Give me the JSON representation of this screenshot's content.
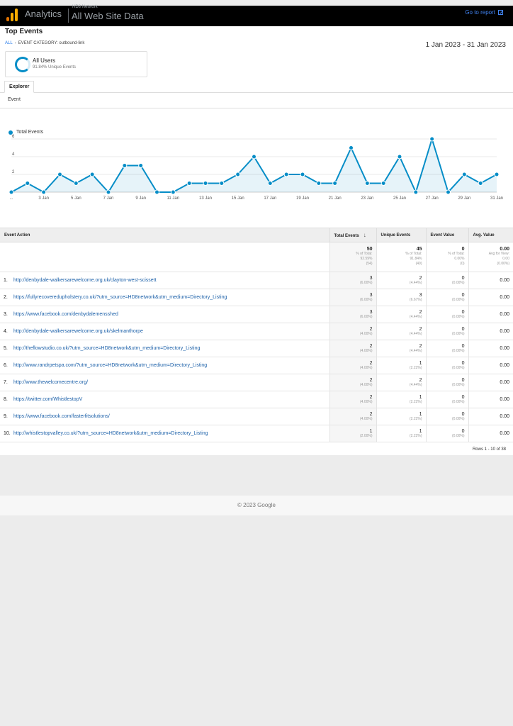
{
  "header": {
    "app_name": "Analytics",
    "account": "HD8 Network",
    "property": "All Web Site Data",
    "goto_report": "Go to report"
  },
  "report": {
    "title": "Top Events",
    "breadcrumb_all": "ALL",
    "breadcrumb_current": "EVENT CATEGORY: outbound-link",
    "date_range": "1 Jan 2023 - 31 Jan 2023"
  },
  "segment": {
    "name": "All Users",
    "sub": "91.84% Unique Events"
  },
  "tabs": {
    "explorer": "Explorer",
    "event": "Event"
  },
  "chart_data": {
    "type": "line",
    "series": [
      {
        "name": "Total Events",
        "values": [
          0,
          1,
          0,
          2,
          1,
          2,
          0,
          3,
          3,
          0,
          0,
          1,
          1,
          1,
          2,
          4,
          1,
          2,
          2,
          1,
          1,
          5,
          1,
          1,
          4,
          0,
          6,
          0,
          2,
          1,
          2
        ]
      }
    ],
    "x": [
      "1 Jan",
      "2 Jan",
      "3 Jan",
      "4 Jan",
      "5 Jan",
      "6 Jan",
      "7 Jan",
      "8 Jan",
      "9 Jan",
      "10 Jan",
      "11 Jan",
      "12 Jan",
      "13 Jan",
      "14 Jan",
      "15 Jan",
      "16 Jan",
      "17 Jan",
      "18 Jan",
      "19 Jan",
      "20 Jan",
      "21 Jan",
      "22 Jan",
      "23 Jan",
      "24 Jan",
      "25 Jan",
      "26 Jan",
      "27 Jan",
      "28 Jan",
      "29 Jan",
      "30 Jan",
      "31 Jan"
    ],
    "x_tick_labels": [
      "...",
      "3 Jan",
      "5 Jan",
      "7 Jan",
      "9 Jan",
      "11 Jan",
      "13 Jan",
      "15 Jan",
      "17 Jan",
      "19 Jan",
      "21 Jan",
      "23 Jan",
      "25 Jan",
      "27 Jan",
      "29 Jan",
      "31 Jan"
    ],
    "y_ticks": [
      "2",
      "4",
      "6"
    ],
    "ylim": [
      0,
      6
    ],
    "color": "#058dc7"
  },
  "table": {
    "headers": [
      "Event Action",
      "Total Events",
      "Unique Events",
      "Event Value",
      "Avg. Value"
    ],
    "totals": [
      {
        "main": "50",
        "l1": "% of Total:",
        "l2": "92.59%",
        "l3": "(54)"
      },
      {
        "main": "45",
        "l1": "% of Total:",
        "l2": "91.84%",
        "l3": "(49)"
      },
      {
        "main": "0",
        "l1": "% of Total:",
        "l2": "0.00%",
        "l3": "(0)"
      },
      {
        "main": "0.00",
        "l1": "Avg for View:",
        "l2": "0.00",
        "l3": "(0.00%)"
      }
    ],
    "rows": [
      {
        "idx": "1.",
        "action": "http://denbydale-walkersarewelcome.org.uk/clayton-west-scissett",
        "te": "3",
        "tep": "(6.00%)",
        "ue": "2",
        "uep": "(4.44%)",
        "ev": "0",
        "evp": "(0.00%)",
        "av": "0.00"
      },
      {
        "idx": "2.",
        "action": "https://fullyrecoveredupholstery.co.uk/?utm_source=HD8network&utm_medium=Directory_Listing",
        "te": "3",
        "tep": "(6.00%)",
        "ue": "3",
        "uep": "(6.67%)",
        "ev": "0",
        "evp": "(0.00%)",
        "av": "0.00"
      },
      {
        "idx": "3.",
        "action": "https://www.facebook.com/denbydalemensshed",
        "te": "3",
        "tep": "(6.00%)",
        "ue": "2",
        "uep": "(4.44%)",
        "ev": "0",
        "evp": "(0.00%)",
        "av": "0.00"
      },
      {
        "idx": "4.",
        "action": "http://denbydale-walkersarewelcome.org.uk/skelmanthorpe",
        "te": "2",
        "tep": "(4.00%)",
        "ue": "2",
        "uep": "(4.44%)",
        "ev": "0",
        "evp": "(0.00%)",
        "av": "0.00"
      },
      {
        "idx": "5.",
        "action": "http://theflowstudio.co.uk/?utm_source=HD8network&utm_medium=Directory_Listing",
        "te": "2",
        "tep": "(4.00%)",
        "ue": "2",
        "uep": "(4.44%)",
        "ev": "0",
        "evp": "(0.00%)",
        "av": "0.00"
      },
      {
        "idx": "6.",
        "action": "http://www.randrpetspa.com/?utm_source=HD8network&utm_medium=Directory_Listing",
        "te": "2",
        "tep": "(4.00%)",
        "ue": "1",
        "uep": "(2.22%)",
        "ev": "0",
        "evp": "(0.00%)",
        "av": "0.00"
      },
      {
        "idx": "7.",
        "action": "http://www.thewelcomecentre.org/",
        "te": "2",
        "tep": "(4.00%)",
        "ue": "2",
        "uep": "(4.44%)",
        "ev": "0",
        "evp": "(0.00%)",
        "av": "0.00"
      },
      {
        "idx": "8.",
        "action": "https://twitter.com/WhistlestopV",
        "te": "2",
        "tep": "(4.00%)",
        "ue": "1",
        "uep": "(2.22%)",
        "ev": "0",
        "evp": "(0.00%)",
        "av": "0.00"
      },
      {
        "idx": "9.",
        "action": "https://www.facebook.com/fasterfitsolutions/",
        "te": "2",
        "tep": "(4.00%)",
        "ue": "1",
        "uep": "(2.22%)",
        "ev": "0",
        "evp": "(0.00%)",
        "av": "0.00"
      },
      {
        "idx": "10.",
        "action": "http://whistlestopvalley.co.uk/?utm_source=HD8network&utm_medium=Directory_Listing",
        "te": "1",
        "tep": "(2.00%)",
        "ue": "1",
        "uep": "(2.22%)",
        "ev": "0",
        "evp": "(0.00%)",
        "av": "0.00"
      }
    ],
    "rows_info": "Rows 1 - 10 of 38"
  },
  "footer": {
    "copyright": "© 2023 Google"
  },
  "colors": {
    "accent": "#058dc7",
    "link": "#1a5fa8",
    "topbar": "#000000"
  }
}
